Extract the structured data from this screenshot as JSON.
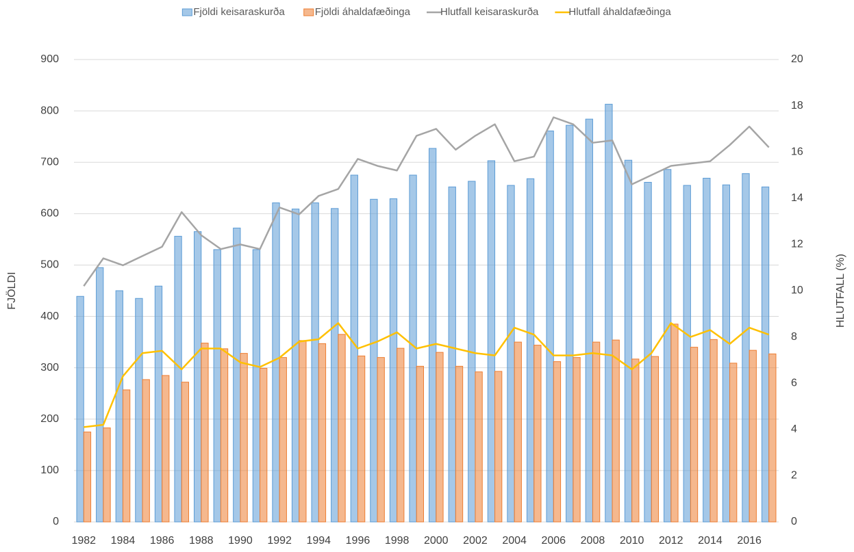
{
  "chart_data": {
    "type": "bar",
    "categories": [
      "1982",
      null,
      "1984",
      null,
      "1986",
      null,
      "1988",
      null,
      "1990",
      null,
      "1992",
      null,
      "1994",
      null,
      "1996",
      null,
      "1998",
      null,
      "2000",
      null,
      "2002",
      null,
      "2004",
      null,
      "2006",
      null,
      "2008",
      null,
      "2010",
      null,
      "2012",
      null,
      "2014",
      null,
      "2016",
      null
    ],
    "y_label": "FJÖLDI",
    "y2_label": "HLUTFALL (%)",
    "ylim": [
      0,
      900
    ],
    "yticks": [
      0,
      100,
      200,
      300,
      400,
      500,
      600,
      700,
      800,
      900
    ],
    "y2lim": [
      0,
      20
    ],
    "y2ticks": [
      0,
      2,
      4,
      6,
      8,
      10,
      12,
      14,
      16,
      18,
      20
    ],
    "grid": true,
    "series": [
      {
        "name": "Fjöldi keisaraskurða",
        "type": "bar",
        "color": "#5b9bd5",
        "values": [
          439,
          495,
          450,
          435,
          459,
          556,
          565,
          530,
          572,
          530,
          621,
          609,
          621,
          610,
          675,
          628,
          629,
          675,
          727,
          652,
          663,
          703,
          655,
          668,
          761,
          772,
          784,
          813,
          704,
          661,
          686,
          655,
          669,
          656,
          678,
          652
        ]
      },
      {
        "name": "Fjöldi áhaldafæðinga",
        "type": "bar",
        "color": "#ed7d31",
        "values": [
          175,
          183,
          257,
          277,
          285,
          272,
          348,
          337,
          328,
          299,
          320,
          353,
          347,
          365,
          323,
          320,
          338,
          303,
          330,
          303,
          292,
          293,
          350,
          344,
          312,
          320,
          350,
          354,
          317,
          322,
          385,
          340,
          355,
          309,
          334,
          327
        ]
      },
      {
        "name": "Hlutfall keisaraskurða",
        "type": "line",
        "axis": "y2",
        "color": "#a5a5a5",
        "values": [
          10.2,
          11.4,
          11.1,
          11.5,
          11.9,
          13.4,
          12.4,
          11.8,
          12.0,
          11.8,
          13.6,
          13.3,
          14.1,
          14.4,
          15.7,
          15.4,
          15.2,
          16.7,
          17.0,
          16.1,
          16.7,
          17.2,
          15.6,
          15.8,
          17.5,
          17.2,
          16.4,
          16.5,
          14.6,
          15.0,
          15.4,
          15.5,
          15.6,
          16.3,
          17.1,
          16.2
        ]
      },
      {
        "name": "Hlutfall áhaldafæðinga",
        "type": "line",
        "axis": "y2",
        "color": "#ffc000",
        "values": [
          4.1,
          4.2,
          6.3,
          7.3,
          7.4,
          6.6,
          7.5,
          7.5,
          6.9,
          6.7,
          7.1,
          7.8,
          7.9,
          8.6,
          7.5,
          7.8,
          8.2,
          7.5,
          7.7,
          7.5,
          7.3,
          7.2,
          8.4,
          8.1,
          7.2,
          7.2,
          7.3,
          7.2,
          6.6,
          7.3,
          8.6,
          8.0,
          8.3,
          7.7,
          8.4,
          8.1
        ]
      }
    ]
  }
}
